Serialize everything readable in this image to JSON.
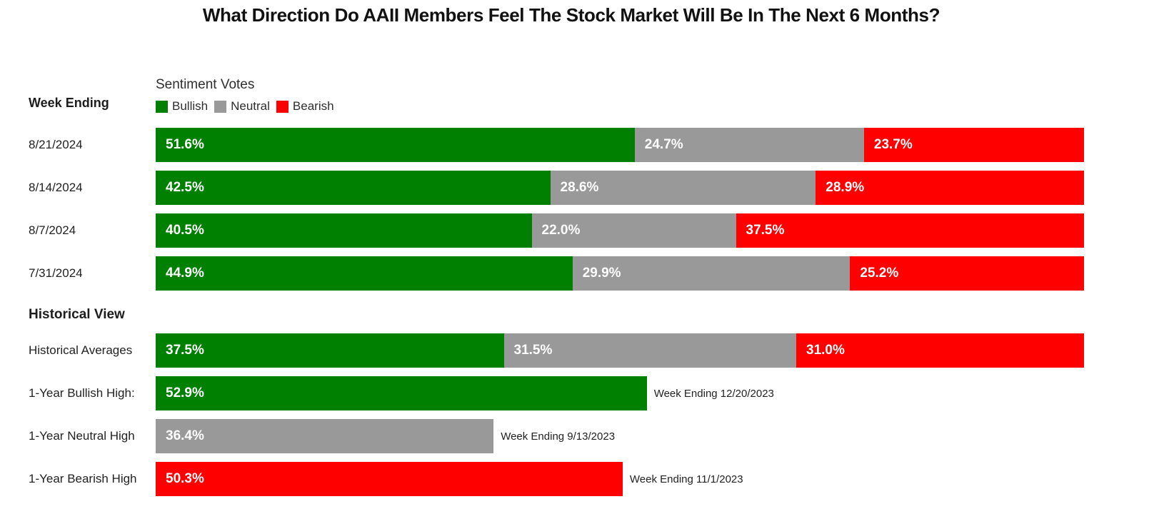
{
  "title": "What Direction Do AAII Members Feel The Stock Market Will Be In The Next 6 Months?",
  "left_column": {
    "week_ending_label": "Week Ending",
    "historical_view_label": "Historical View"
  },
  "legend": {
    "title": "Sentiment Votes",
    "items": [
      {
        "label": "Bullish",
        "color": "#008000"
      },
      {
        "label": "Neutral",
        "color": "#999999"
      },
      {
        "label": "Bearish",
        "color": "#fe0000"
      }
    ]
  },
  "chart_data": {
    "type": "bar",
    "orientation": "horizontal",
    "stacked": true,
    "unit": "%",
    "xlim": [
      0,
      100
    ],
    "title": "What Direction Do AAII Members Feel The Stock Market Will Be In The Next 6 Months?",
    "categories": [
      "8/21/2024",
      "8/14/2024",
      "8/7/2024",
      "7/31/2024"
    ],
    "series": [
      {
        "name": "Bullish",
        "color": "#008000",
        "values": [
          51.6,
          42.5,
          40.5,
          44.9
        ]
      },
      {
        "name": "Neutral",
        "color": "#999999",
        "values": [
          24.7,
          28.6,
          22.0,
          29.9
        ]
      },
      {
        "name": "Bearish",
        "color": "#fe0000",
        "values": [
          23.7,
          28.9,
          37.5,
          25.2
        ]
      }
    ],
    "historical": {
      "section_label": "Historical View",
      "averages": {
        "label": "Historical Averages",
        "values": [
          {
            "name": "Bullish",
            "value": 37.5
          },
          {
            "name": "Neutral",
            "value": 31.5
          },
          {
            "name": "Bearish",
            "value": 31.0
          }
        ]
      },
      "highs": [
        {
          "label": "1-Year Bullish High:",
          "series": "Bullish",
          "value": 52.9,
          "annotation": "Week Ending 12/20/2023"
        },
        {
          "label": "1-Year Neutral High",
          "series": "Neutral",
          "value": 36.4,
          "annotation": "Week Ending 9/13/2023"
        },
        {
          "label": "1-Year Bearish High",
          "series": "Bearish",
          "value": 50.3,
          "annotation": "Week Ending 11/1/2023"
        }
      ]
    }
  }
}
